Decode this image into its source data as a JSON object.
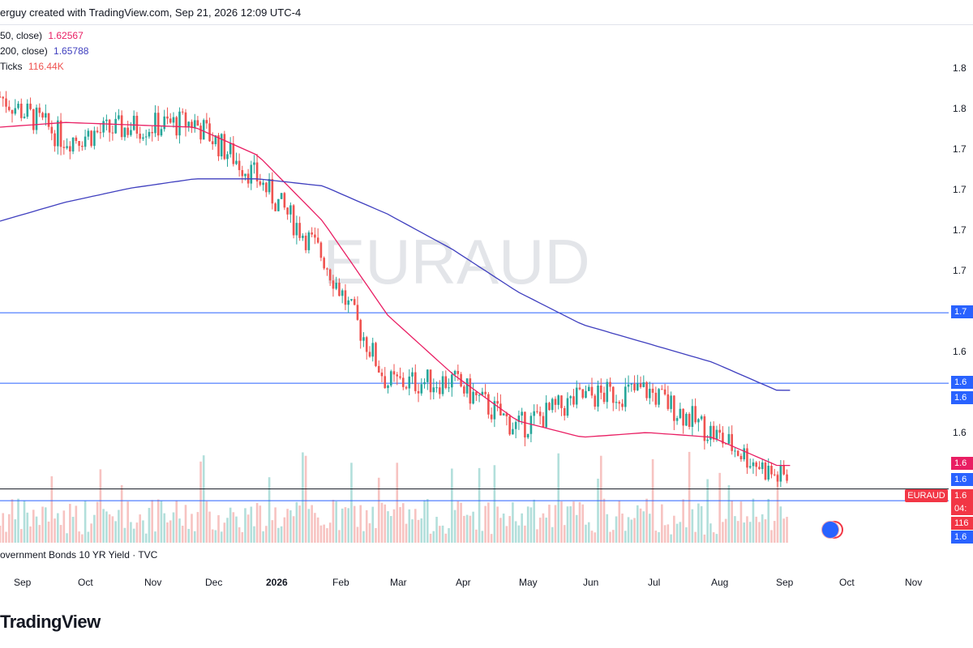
{
  "header": {
    "text": "erguy created with TradingView.com, Sep 21, 2026 12:09 UTC-4"
  },
  "legend": [
    {
      "label": "50, close)",
      "value": "1.62567",
      "color": "#e91e63"
    },
    {
      "label": "200, close)",
      "value": "1.65788",
      "color": "#3f3fbf"
    },
    {
      "label": "Ticks",
      "value": "116.44K",
      "color": "#ef5350"
    }
  ],
  "watermark": "EURAUD",
  "gov_label": "overnment Bonds 10 YR Yield · TVC",
  "footer_logo": "TradingView",
  "symbol_tag": "EURAUD",
  "colors": {
    "up": "#26a69a",
    "down": "#ef5350",
    "ma50": "#e91e63",
    "ma200": "#3f3fbf",
    "hline": "#2962ff",
    "volume_up": "#b2dfdb",
    "volume_down": "#f7c3c1"
  },
  "axis": {
    "price_labels": [
      "1.8",
      "1.8",
      "1.7",
      "1.7",
      "1.7",
      "1.7",
      "1.6",
      "1.6"
    ],
    "months": [
      "Sep",
      "Oct",
      "Nov",
      "Dec",
      "2026",
      "Feb",
      "Mar",
      "Apr",
      "May",
      "Jun",
      "Jul",
      "Aug",
      "Sep",
      "Oct",
      "Nov"
    ]
  },
  "price_tags": [
    {
      "text": "1.7",
      "color": "#2962ff"
    },
    {
      "text": "1.6",
      "color": "#2962ff"
    },
    {
      "text": "1.6",
      "color": "#2962ff"
    },
    {
      "text": "1.6",
      "color": "#e91e63"
    },
    {
      "text": "1.6",
      "color": "#2962ff"
    },
    {
      "text": "1.6",
      "color": "#f23645"
    },
    {
      "text": "04:",
      "color": "#f23645"
    },
    {
      "text": "116",
      "color": "#f23645"
    },
    {
      "text": "1.6",
      "color": "#2962ff"
    }
  ],
  "chart_data": {
    "type": "line",
    "title": "EURAUD",
    "price_range": [
      1.6,
      1.8
    ],
    "x": [
      "Sep 2025",
      "Oct 2025",
      "Nov 2025",
      "Dec 2025",
      "Jan 2026",
      "Feb 2026",
      "Mar 2026",
      "Apr 2026",
      "May 2026",
      "Jun 2026",
      "Jul 2026",
      "Aug 2026",
      "Sep 2026"
    ],
    "series": [
      {
        "name": "50, close)",
        "values": [
          1.77,
          1.772,
          1.771,
          1.77,
          1.758,
          1.73,
          1.69,
          1.665,
          1.645,
          1.638,
          1.64,
          1.638,
          1.626
        ]
      },
      {
        "name": "200, close)",
        "values": [
          1.73,
          1.738,
          1.744,
          1.748,
          1.748,
          1.745,
          1.733,
          1.718,
          1.7,
          1.686,
          1.678,
          1.67,
          1.658
        ]
      }
    ],
    "close_approx": [
      1.783,
      1.765,
      1.77,
      1.772,
      1.748,
      1.715,
      1.661,
      1.662,
      1.642,
      1.655,
      1.658,
      1.64,
      1.621
    ],
    "horizontal_levels": [
      1.691,
      1.661,
      1.616,
      1.611
    ]
  }
}
